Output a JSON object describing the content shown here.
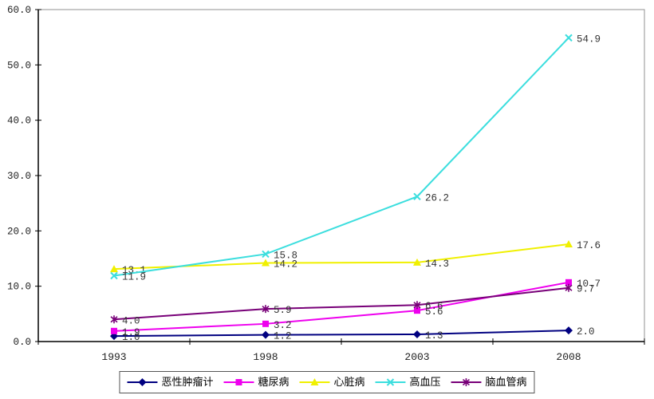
{
  "chart_data": {
    "type": "line",
    "title": "",
    "xlabel": "",
    "ylabel": "",
    "x": [
      "1993",
      "1998",
      "2003",
      "2008"
    ],
    "series": [
      {
        "name": "恶性肿瘤计",
        "marker": "diamond",
        "color": "#000080",
        "values": [
          1.0,
          1.2,
          1.3,
          2.0
        ],
        "labels": [
          "1.0",
          "1.2",
          "1.3",
          "2.0"
        ]
      },
      {
        "name": "糖尿病",
        "marker": "square",
        "color": "#EE00EE",
        "values": [
          1.9,
          3.2,
          5.6,
          10.7
        ],
        "labels": [
          "1.9",
          "3.2",
          "5.6",
          "10.7"
        ]
      },
      {
        "name": "心脏病",
        "marker": "triangle",
        "color": "#F0F000",
        "values": [
          13.1,
          14.2,
          14.3,
          17.6
        ],
        "labels": [
          "13.1",
          "14.2",
          "14.3",
          "17.6"
        ]
      },
      {
        "name": "高血压",
        "marker": "x",
        "color": "#3CDEDE",
        "values": [
          11.9,
          15.8,
          26.2,
          54.9
        ],
        "labels": [
          "11.9",
          "15.8",
          "26.2",
          "54.9"
        ]
      },
      {
        "name": "脑血管病",
        "marker": "asterisk",
        "color": "#780078",
        "values": [
          4.0,
          5.9,
          6.6,
          9.7
        ],
        "labels": [
          "4.0",
          "5.9",
          "6.6",
          "9.7"
        ]
      }
    ],
    "ylim": [
      0,
      60
    ],
    "ytick_step": 10,
    "ytick_labels": [
      "0.0",
      "10.0",
      "20.0",
      "30.0",
      "40.0",
      "50.0",
      "60.0"
    ],
    "grid": false,
    "data_labels": true,
    "legend_position": "bottom",
    "colors": {
      "axis": "#000000",
      "plot_border": "#909090",
      "label_text": "#333333",
      "tick_text": "#222222",
      "background": "#ffffff"
    }
  }
}
